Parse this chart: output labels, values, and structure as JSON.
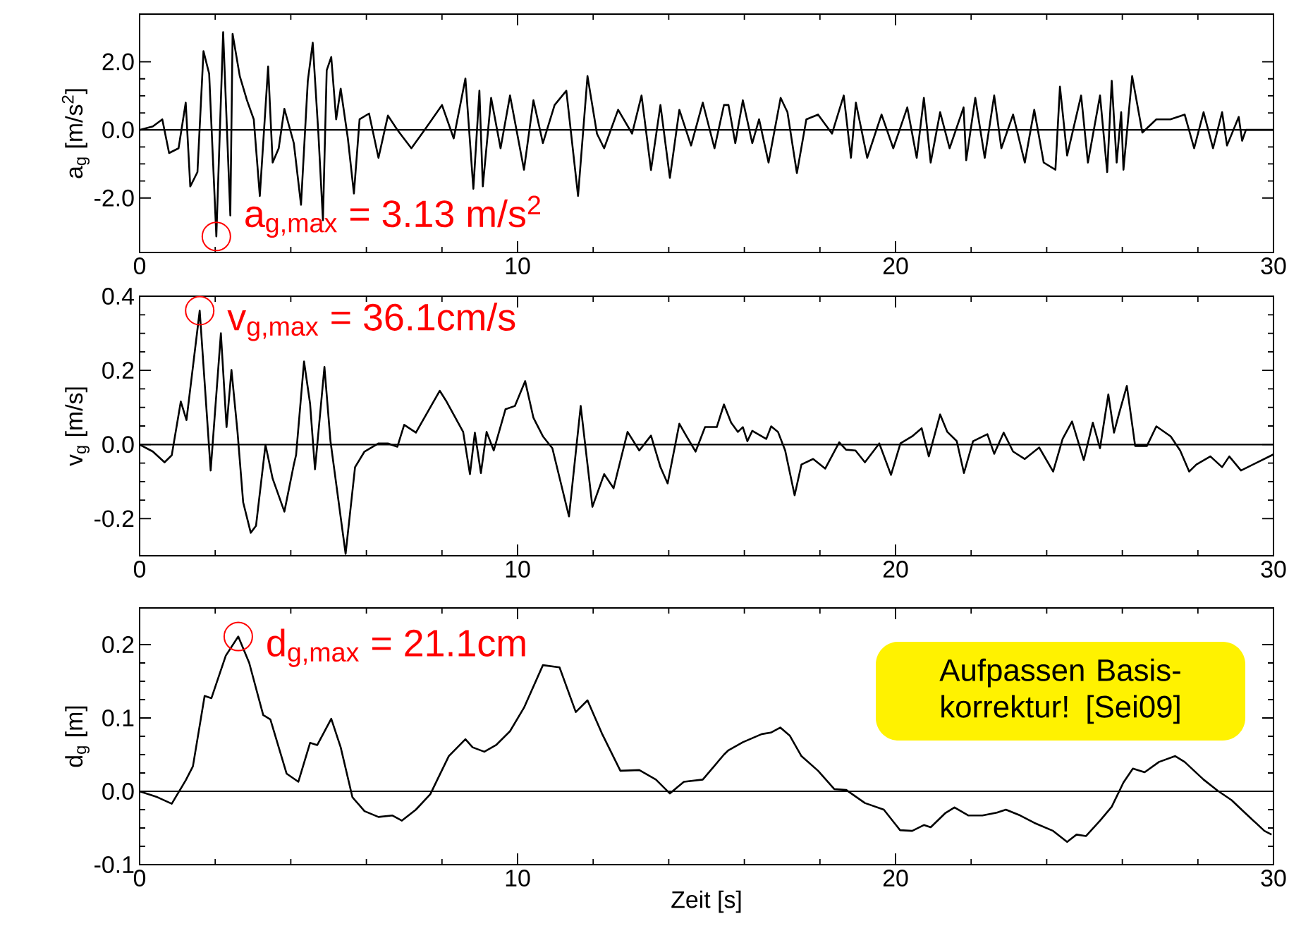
{
  "chart_data": [
    {
      "type": "line",
      "ylabel": "a$_{g}$ [m/s$^{2}$]",
      "color": "#000000",
      "line_style": "solid",
      "xlim": [
        0,
        30
      ],
      "xticks": [
        0,
        10,
        20,
        30
      ],
      "ylim": [
        -3.6,
        3.4
      ],
      "yticks": [
        {
          "value": -2,
          "label": "-2.0"
        },
        {
          "value": 0,
          "label": "0.0"
        },
        {
          "value": 2,
          "label": "2.0"
        }
      ],
      "ref_lines": [
        {
          "axis": "y",
          "value": 0,
          "color": "#000000"
        }
      ],
      "annotations": [
        {
          "text": "a$_{g,max}$ = 3.13 m/s$^{2}$",
          "x": 2.03,
          "y": -3.13
        }
      ],
      "x": [
        0,
        0.35,
        0.6,
        0.78,
        1.03,
        1.22,
        1.34,
        1.53,
        1.69,
        1.84,
        2.03,
        2.21,
        2.4,
        2.46,
        2.65,
        2.84,
        3.02,
        3.18,
        3.4,
        3.52,
        3.68,
        3.83,
        4.08,
        4.27,
        4.45,
        4.58,
        4.73,
        4.85,
        4.95,
        5.07,
        5.2,
        5.32,
        5.51,
        5.67,
        5.82,
        6.07,
        6.32,
        6.57,
        6.82,
        7.19,
        7.56,
        8.0,
        8.31,
        8.62,
        8.83,
        8.99,
        9.08,
        9.3,
        9.55,
        9.8,
        10.17,
        10.42,
        10.67,
        10.98,
        11.29,
        11.6,
        11.85,
        12.1,
        12.29,
        12.66,
        13.03,
        13.28,
        13.53,
        13.78,
        14.03,
        14.28,
        14.59,
        14.9,
        15.21,
        15.46,
        15.58,
        15.76,
        15.96,
        16.21,
        16.39,
        16.64,
        16.96,
        17.14,
        17.39,
        17.64,
        17.95,
        18.32,
        18.63,
        18.82,
        18.95,
        19.25,
        19.63,
        19.94,
        20.31,
        20.56,
        20.75,
        20.93,
        21.18,
        21.43,
        21.8,
        21.87,
        22.11,
        22.36,
        22.61,
        22.8,
        23.11,
        23.42,
        23.67,
        23.92,
        24.23,
        24.35,
        24.54,
        24.91,
        25.09,
        25.41,
        25.6,
        25.72,
        25.85,
        25.97,
        26.03,
        26.26,
        26.53,
        26.9,
        27.27,
        27.65,
        27.9,
        28.15,
        28.4,
        28.64,
        28.77,
        29.08,
        29.17,
        29.27,
        29.99
      ],
      "values": [
        0,
        0.1,
        0.31,
        -0.68,
        -0.54,
        0.8,
        -1.66,
        -1.24,
        2.31,
        1.65,
        -3.13,
        2.87,
        -2.51,
        2.82,
        1.58,
        0.87,
        0.31,
        -1.94,
        1.86,
        -0.96,
        -0.54,
        0.62,
        -0.39,
        -2.2,
        1.44,
        2.56,
        -0.11,
        -2.65,
        1.75,
        2.14,
        0.31,
        1.21,
        -0.25,
        -1.87,
        0.31,
        0.48,
        -0.82,
        0.42,
        0,
        -0.54,
        0.03,
        0.73,
        -0.25,
        1.51,
        -1.73,
        1.15,
        -1.66,
        0.94,
        -0.54,
        1.01,
        -1.17,
        0.87,
        -0.39,
        0.73,
        1.15,
        -1.94,
        1.58,
        -0.11,
        -0.54,
        0.59,
        -0.11,
        1.01,
        -1.18,
        0.73,
        -1.41,
        0.59,
        -0.46,
        0.8,
        -0.54,
        0.73,
        0.73,
        -0.39,
        0.87,
        -0.39,
        0.31,
        -0.96,
        0.94,
        0.52,
        -1.27,
        0.31,
        0.45,
        -0.11,
        1.01,
        -0.82,
        0.8,
        -0.82,
        0.45,
        -0.54,
        0.66,
        -0.82,
        0.94,
        -0.96,
        0.52,
        -0.54,
        0.66,
        -0.89,
        0.94,
        -0.82,
        1.01,
        -0.54,
        0.45,
        -0.96,
        0.59,
        -0.96,
        -1.17,
        1.27,
        -0.75,
        1.01,
        -0.96,
        1.01,
        -1.24,
        1.44,
        -0.96,
        0.52,
        -1.17,
        1.58,
        -0.08,
        0.31,
        0.31,
        0.45,
        -0.54,
        0.52,
        -0.54,
        0.52,
        -0.46,
        0.38,
        -0.32,
        0,
        0
      ]
    },
    {
      "type": "line",
      "ylabel": "v$_{g}$ [m/s]",
      "color": "#000000",
      "line_style": "solid",
      "xlim": [
        0,
        30
      ],
      "xticks": [
        0,
        10,
        20,
        30
      ],
      "ylim": [
        -0.3,
        0.4
      ],
      "yticks": [
        {
          "value": -0.2,
          "label": "-0.2"
        },
        {
          "value": 0,
          "label": "0.0"
        },
        {
          "value": 0.2,
          "label": "0.2"
        },
        {
          "value": 0.4,
          "label": "0.4"
        }
      ],
      "ref_lines": [
        {
          "axis": "y",
          "value": 0,
          "color": "#000000"
        }
      ],
      "annotations": [
        {
          "text": "v$_{g,max}$ = 36.1cm/s",
          "x": 1.59,
          "y": 0.361
        }
      ],
      "x": [
        0,
        0.35,
        0.66,
        0.85,
        1.09,
        1.24,
        1.59,
        1.88,
        2.15,
        2.3,
        2.43,
        2.59,
        2.74,
        2.94,
        3.08,
        3.33,
        3.52,
        3.83,
        4.08,
        4.14,
        4.35,
        4.51,
        4.64,
        4.89,
        5.05,
        5.45,
        5.7,
        5.95,
        6.32,
        6.57,
        6.82,
        7.0,
        7.31,
        7.94,
        8.12,
        8.56,
        8.74,
        8.87,
        9.03,
        9.18,
        9.37,
        9.68,
        9.93,
        10.2,
        10.42,
        10.67,
        10.92,
        11.36,
        11.67,
        11.98,
        12.29,
        12.54,
        12.91,
        13.22,
        13.53,
        13.78,
        13.97,
        14.28,
        14.47,
        14.71,
        14.96,
        15.27,
        15.46,
        15.65,
        15.83,
        15.96,
        16.08,
        16.21,
        16.58,
        16.71,
        16.89,
        17.08,
        17.33,
        17.51,
        17.82,
        18.14,
        18.51,
        18.69,
        18.94,
        19.19,
        19.57,
        19.88,
        20.13,
        20.44,
        20.69,
        20.88,
        21.18,
        21.37,
        21.62,
        21.81,
        22.05,
        22.43,
        22.61,
        22.86,
        23.11,
        23.42,
        23.8,
        24.17,
        24.42,
        24.67,
        24.98,
        25.22,
        25.41,
        25.63,
        25.78,
        25.91,
        26.12,
        26.34,
        26.65,
        26.9,
        27.28,
        27.53,
        27.77,
        27.96,
        28.33,
        28.64,
        28.83,
        29.14,
        29.99
      ],
      "values": [
        0,
        -0.019,
        -0.048,
        -0.029,
        0.116,
        0.066,
        0.361,
        -0.07,
        0.3,
        0.047,
        0.201,
        0.034,
        -0.156,
        -0.238,
        -0.219,
        -0.001,
        -0.092,
        -0.181,
        -0.054,
        -0.028,
        0.224,
        0.11,
        -0.067,
        0.209,
        0.009,
        -0.295,
        -0.061,
        -0.019,
        0.003,
        0.003,
        -0.006,
        0.053,
        0.032,
        0.145,
        0.116,
        0.034,
        -0.08,
        0.032,
        -0.077,
        0.034,
        -0.016,
        0.095,
        0.104,
        0.171,
        0.072,
        0.022,
        -0.01,
        -0.194,
        0.104,
        -0.168,
        -0.08,
        -0.118,
        0.034,
        -0.016,
        0.024,
        -0.061,
        -0.105,
        0.056,
        0.022,
        -0.019,
        0.047,
        0.047,
        0.108,
        0.059,
        0.034,
        0.047,
        0.009,
        0.037,
        0.015,
        0.049,
        0.034,
        -0.016,
        -0.137,
        -0.054,
        -0.039,
        -0.065,
        0.006,
        -0.014,
        -0.016,
        -0.048,
        0.003,
        -0.082,
        0.003,
        0.022,
        0.044,
        -0.032,
        0.081,
        0.034,
        0.009,
        -0.077,
        0.009,
        0.028,
        -0.025,
        0.032,
        -0.019,
        -0.039,
        -0.008,
        -0.073,
        0.015,
        0.062,
        -0.042,
        0.059,
        -0.01,
        0.135,
        0.032,
        0.082,
        0.158,
        -0.004,
        -0.004,
        0.049,
        0.022,
        -0.016,
        -0.073,
        -0.054,
        -0.032,
        -0.061,
        -0.032,
        -0.07,
        -0.027
      ]
    },
    {
      "type": "line",
      "ylabel": "d$_{g}$ [m]",
      "xlabel": "Zeit [s]",
      "color": "#000000",
      "line_style": "solid",
      "xlim": [
        0,
        30
      ],
      "xticks": [
        0,
        10,
        20,
        30
      ],
      "ylim": [
        -0.1,
        0.25
      ],
      "yticks": [
        {
          "value": -0.1,
          "label": "-0.1"
        },
        {
          "value": 0,
          "label": "0.0"
        },
        {
          "value": 0.1,
          "label": "0.1"
        },
        {
          "value": 0.2,
          "label": "0.2"
        }
      ],
      "ref_lines": [
        {
          "axis": "y",
          "value": 0,
          "color": "#000000"
        }
      ],
      "annotations": [
        {
          "text": "d$_{g,max}$ = 21.1cm",
          "x": 2.61,
          "y": 0.211
        },
        "Aufpassen Basis-korrektur! [Sei09]"
      ],
      "x": [
        0,
        0.47,
        0.85,
        1.22,
        1.41,
        1.72,
        1.9,
        2.28,
        2.61,
        2.9,
        3.27,
        3.46,
        3.89,
        4.2,
        4.51,
        4.7,
        5.07,
        5.32,
        5.63,
        5.95,
        6.32,
        6.69,
        6.94,
        7.31,
        7.69,
        8.18,
        8.62,
        8.81,
        9.12,
        9.43,
        9.8,
        10.17,
        10.67,
        11.11,
        11.54,
        11.85,
        12.23,
        12.72,
        13.22,
        13.66,
        14.03,
        14.4,
        14.9,
        15.46,
        15.58,
        15.96,
        16.46,
        16.7,
        16.95,
        17.2,
        17.51,
        17.95,
        18.38,
        18.69,
        19.19,
        19.69,
        20.12,
        20.44,
        20.75,
        20.93,
        21.31,
        21.56,
        21.93,
        22.3,
        22.68,
        22.92,
        23.3,
        23.67,
        24.17,
        24.54,
        24.79,
        25.04,
        25.41,
        25.72,
        26.03,
        26.28,
        26.59,
        26.97,
        27.4,
        27.65,
        28.15,
        28.52,
        28.89,
        29.26,
        29.76,
        29.95
      ],
      "values": [
        0,
        -0.008,
        -0.017,
        0.015,
        0.034,
        0.13,
        0.127,
        0.185,
        0.211,
        0.175,
        0.104,
        0.098,
        0.024,
        0.013,
        0.066,
        0.063,
        0.099,
        0.06,
        -0.008,
        -0.027,
        -0.035,
        -0.033,
        -0.04,
        -0.025,
        -0.004,
        0.048,
        0.071,
        0.06,
        0.054,
        0.063,
        0.082,
        0.114,
        0.172,
        0.169,
        0.108,
        0.124,
        0.079,
        0.028,
        0.029,
        0.016,
        -0.003,
        0.013,
        0.016,
        0.05,
        0.056,
        0.067,
        0.078,
        0.08,
        0.087,
        0.076,
        0.048,
        0.028,
        0.003,
        0.002,
        -0.016,
        -0.025,
        -0.053,
        -0.054,
        -0.046,
        -0.049,
        -0.03,
        -0.022,
        -0.033,
        -0.033,
        -0.029,
        -0.025,
        -0.033,
        -0.043,
        -0.054,
        -0.069,
        -0.059,
        -0.061,
        -0.04,
        -0.021,
        0.012,
        0.031,
        0.026,
        0.04,
        0.048,
        0.04,
        0.016,
        0.001,
        -0.012,
        -0.03,
        -0.054,
        -0.059
      ]
    }
  ]
}
